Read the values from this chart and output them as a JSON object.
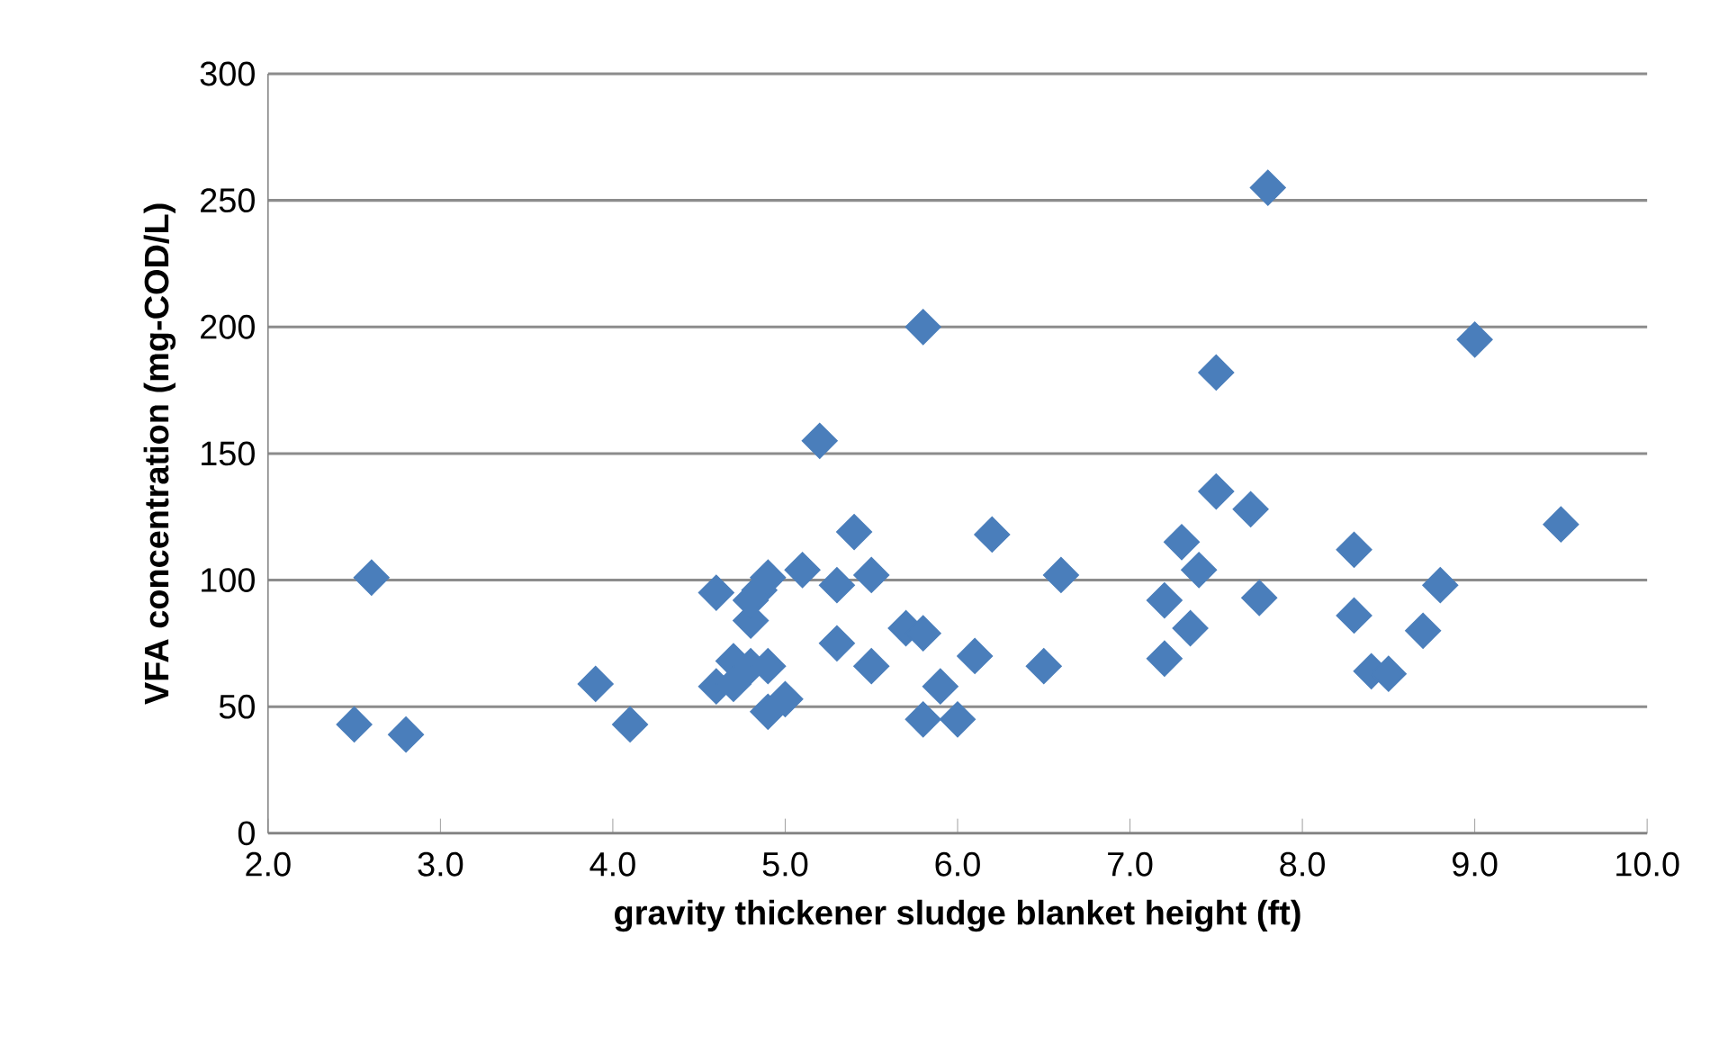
{
  "chart_data": {
    "type": "scatter",
    "xlabel": "gravity thickener sludge blanket height (ft)",
    "ylabel": "VFA concentration (mg-COD/L)",
    "xlim": [
      2.0,
      10.0
    ],
    "ylim": [
      0,
      300
    ],
    "xticks": [
      {
        "value": 2,
        "label": "2.0"
      },
      {
        "value": 3,
        "label": "3.0"
      },
      {
        "value": 4,
        "label": "4.0"
      },
      {
        "value": 5,
        "label": "5.0"
      },
      {
        "value": 6,
        "label": "6.0"
      },
      {
        "value": 7,
        "label": "7.0"
      },
      {
        "value": 8,
        "label": "8.0"
      },
      {
        "value": 9,
        "label": "9.0"
      },
      {
        "value": 10,
        "label": "10.0"
      }
    ],
    "yticks": [
      0,
      50,
      100,
      150,
      200,
      250,
      300
    ],
    "grid": "y",
    "marker": "diamond",
    "series": [
      {
        "color": "#4a7ebb",
        "x": [
          2.5,
          2.6,
          2.8,
          3.9,
          4.1,
          4.6,
          4.6,
          4.7,
          4.7,
          4.8,
          4.8,
          4.8,
          4.85,
          4.9,
          4.9,
          4.9,
          5.0,
          5.1,
          5.2,
          5.3,
          5.3,
          5.4,
          5.5,
          5.5,
          5.7,
          5.8,
          5.8,
          5.8,
          5.9,
          6.0,
          6.1,
          6.2,
          6.5,
          6.6,
          7.2,
          7.2,
          7.3,
          7.35,
          7.4,
          7.5,
          7.5,
          7.7,
          7.75,
          7.8,
          8.3,
          8.3,
          8.4,
          8.5,
          8.7,
          8.8,
          9.0,
          9.5
        ],
        "values": [
          43,
          101,
          39,
          59,
          43,
          95,
          58,
          68,
          59,
          84,
          92,
          66,
          96,
          101,
          66,
          48,
          53,
          104,
          155,
          75,
          98,
          119,
          102,
          66,
          81,
          79,
          45,
          200,
          58,
          45,
          70,
          118,
          66,
          102,
          92,
          69,
          115,
          81,
          104,
          182,
          135,
          128,
          93,
          255,
          112,
          86,
          64,
          63,
          80,
          98,
          195,
          122
        ]
      }
    ]
  }
}
